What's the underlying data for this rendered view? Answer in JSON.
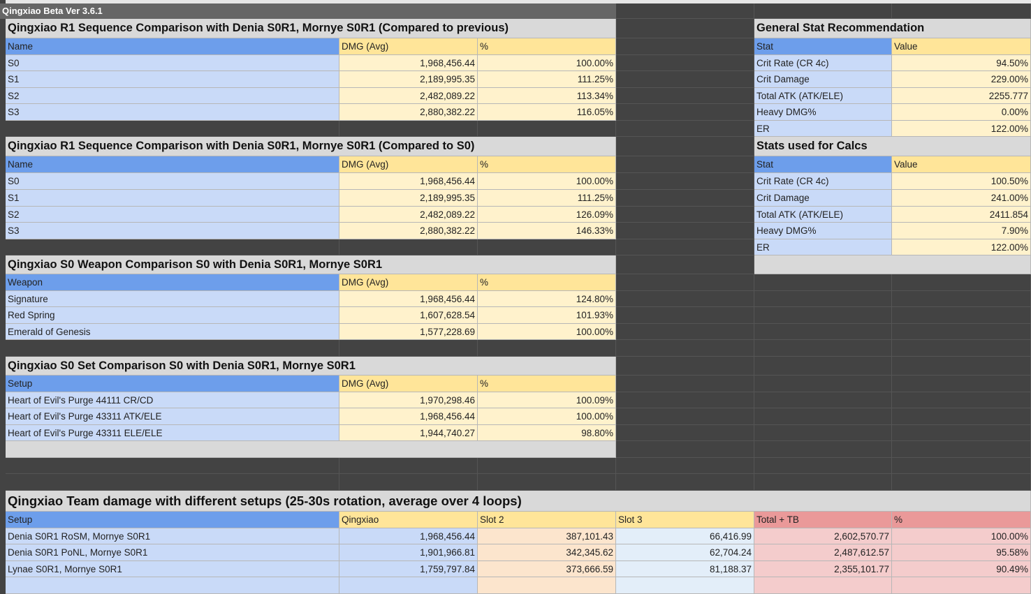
{
  "header": {
    "title": "Qingxiao Beta Ver 3.6.1"
  },
  "sections": [
    {
      "title": "Qingxiao R1 Sequence Comparison with Denia S0R1, Mornye S0R1 (Compared to previous)",
      "columns": [
        "Name",
        "DMG (Avg)",
        "%"
      ],
      "rows": [
        [
          "S0",
          "1,968,456.44",
          "100.00%"
        ],
        [
          "S1",
          "2,189,995.35",
          "111.25%"
        ],
        [
          "S2",
          "2,482,089.22",
          "113.34%"
        ],
        [
          "S3",
          "2,880,382.22",
          "116.05%"
        ]
      ]
    },
    {
      "title": "Qingxiao R1 Sequence Comparison with Denia S0R1, Mornye S0R1 (Compared to S0)",
      "columns": [
        "Name",
        "DMG (Avg)",
        "%"
      ],
      "rows": [
        [
          "S0",
          "1,968,456.44",
          "100.00%"
        ],
        [
          "S1",
          "2,189,995.35",
          "111.25%"
        ],
        [
          "S2",
          "2,482,089.22",
          "126.09%"
        ],
        [
          "S3",
          "2,880,382.22",
          "146.33%"
        ]
      ]
    },
    {
      "title": "Qingxiao S0 Weapon Comparison S0 with Denia S0R1, Mornye S0R1",
      "columns": [
        "Weapon",
        "DMG (Avg)",
        "%"
      ],
      "rows": [
        [
          "Signature",
          "1,968,456.44",
          "124.80%"
        ],
        [
          "Red Spring",
          "1,607,628.54",
          "101.93%"
        ],
        [
          "Emerald of Genesis",
          "1,577,228.69",
          "100.00%"
        ]
      ]
    },
    {
      "title": "Qingxiao S0 Set Comparison S0 with Denia S0R1, Mornye S0R1",
      "columns": [
        "Setup",
        "DMG (Avg)",
        "%"
      ],
      "rows": [
        [
          "Heart of Evil's Purge 44111 CR/CD",
          "1,970,298.46",
          "100.09%"
        ],
        [
          "Heart of Evil's Purge 43311 ATK/ELE",
          "1,968,456.44",
          "100.00%"
        ],
        [
          "Heart of Evil's Purge 43311 ELE/ELE",
          "1,944,740.27",
          "98.80%"
        ]
      ]
    }
  ],
  "side_tables": [
    {
      "title": "General Stat Recommendation",
      "columns": [
        "Stat",
        "Value"
      ],
      "rows": [
        [
          "Crit Rate (CR 4c)",
          "94.50%"
        ],
        [
          "Crit Damage",
          "229.00%"
        ],
        [
          "Total ATK (ATK/ELE)",
          "2255.777"
        ],
        [
          "Heavy DMG%",
          "0.00%"
        ],
        [
          "ER",
          "122.00%"
        ]
      ]
    },
    {
      "title": "Stats used for Calcs",
      "columns": [
        "Stat",
        "Value"
      ],
      "rows": [
        [
          "Crit Rate (CR 4c)",
          "100.50%"
        ],
        [
          "Crit Damage",
          "241.00%"
        ],
        [
          "Total ATK (ATK/ELE)",
          "2411.854"
        ],
        [
          "Heavy DMG%",
          "7.90%"
        ],
        [
          "ER",
          "122.00%"
        ]
      ]
    }
  ],
  "team": {
    "title": "Qingxiao Team damage with different setups (25-30s rotation, average over 4 loops)",
    "columns": [
      "Setup",
      "Qingxiao",
      "Slot 2",
      "Slot 3",
      "Total + TB",
      "%"
    ],
    "rows": [
      [
        "Denia S0R1 RoSM, Mornye S0R1",
        "1,968,456.44",
        "387,101.43",
        "66,416.99",
        "2,602,570.77",
        "100.00%"
      ],
      [
        "Denia S0R1 PoNL, Mornye S0R1",
        "1,901,966.81",
        "342,345.62",
        "62,704.24",
        "2,487,612.57",
        "95.58%"
      ],
      [
        "Lynae S0R1, Mornye S0R1",
        "1,759,797.84",
        "373,666.59",
        "81,188.37",
        "2,355,101.77",
        "90.49%"
      ]
    ]
  }
}
